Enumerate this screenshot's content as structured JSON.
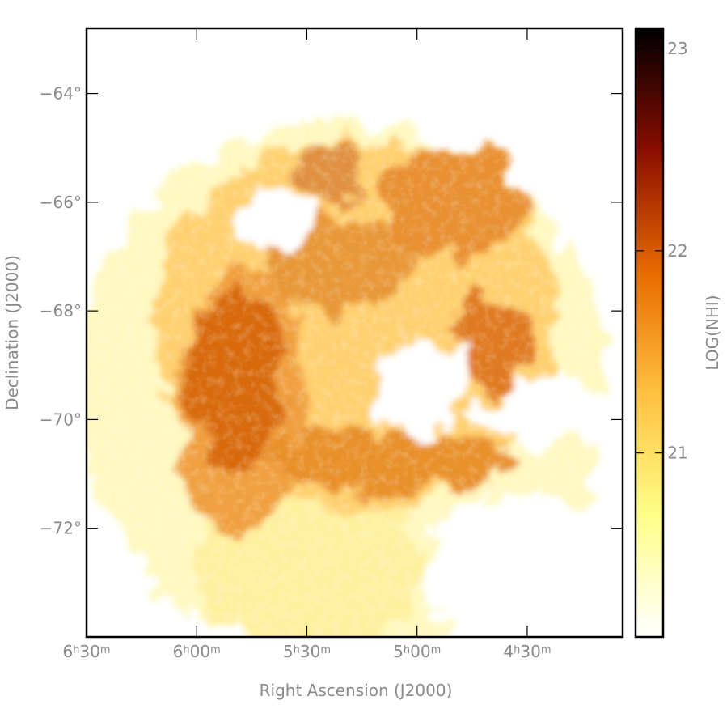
{
  "chart_data": {
    "type": "image",
    "xlabel": "Right Ascension (J2000)",
    "ylabel": "Declination (J2000)",
    "colorbar_label": "LOG(NHI)",
    "xlim": [
      97.5,
      61
    ],
    "xticks": [
      {
        "value": 97.5,
        "label": "6h30m"
      },
      {
        "value": 90,
        "label": "6h00m"
      },
      {
        "value": 82.5,
        "label": "5h30m"
      },
      {
        "value": 75,
        "label": "5h00m"
      },
      {
        "value": 67.5,
        "label": "4h30m"
      }
    ],
    "ylim": [
      -74,
      -62.8
    ],
    "yticks": [
      {
        "value": -64,
        "label": "−64°"
      },
      {
        "value": -66,
        "label": "−66°"
      },
      {
        "value": -68,
        "label": "−68°"
      },
      {
        "value": -70,
        "label": "−70°"
      },
      {
        "value": -72,
        "label": "−72°"
      }
    ],
    "clim": [
      20.09,
      23.1
    ],
    "cticks": [
      21,
      22,
      23
    ],
    "colormap": [
      "#ffffff",
      "#ffff88",
      "#ffc040",
      "#e86a00",
      "#8a0d00",
      "#000000"
    ]
  }
}
